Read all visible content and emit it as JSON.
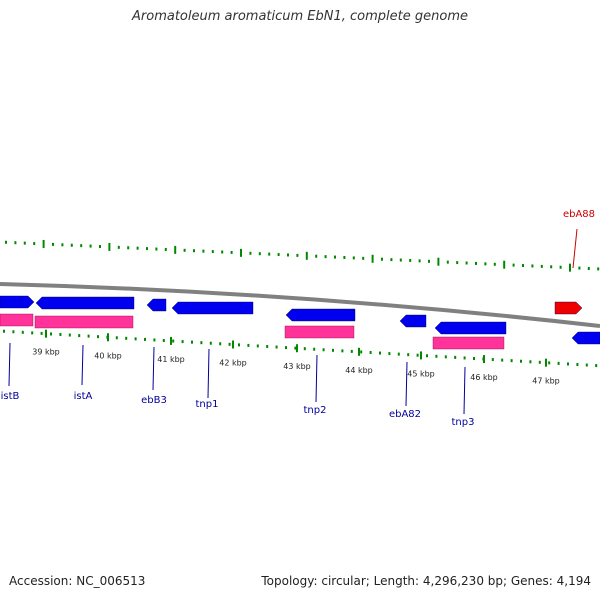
{
  "title": "Aromatoleum aromaticum EbN1, complete genome",
  "footer": {
    "accession": "Accession: NC_006513",
    "summary": "Topology: circular; Length: 4,296,230 bp; Genes: 4,194"
  },
  "colors": {
    "backbone": "#808080",
    "forward_gene": "#0000ee",
    "reverse_gene": "#0000ee",
    "cds": "#ff3399",
    "rna_gene": "#ee0000",
    "tick": "#008800",
    "gene_label": "#000099",
    "rna_label": "#cc0000",
    "scale_label": "#222222"
  },
  "scale": {
    "unit": "kbp",
    "labels": [
      "39 kbp",
      "40 kbp",
      "41 kbp",
      "42 kbp",
      "43 kbp",
      "44 kbp",
      "45 kbp",
      "46 kbp",
      "47 kbp"
    ]
  },
  "genes": [
    {
      "name": "istB",
      "strand": "+",
      "type": "gene"
    },
    {
      "name": "istA",
      "strand": "-",
      "type": "gene"
    },
    {
      "name": "ebB3",
      "strand": "-",
      "type": "gene"
    },
    {
      "name": "tnp1",
      "strand": "-",
      "type": "gene"
    },
    {
      "name": "tnp2",
      "strand": "-",
      "type": "gene"
    },
    {
      "name": "ebA82",
      "strand": "-",
      "type": "gene"
    },
    {
      "name": "tnp3",
      "strand": "-",
      "type": "gene"
    },
    {
      "name": "ebA88",
      "strand": "+",
      "type": "rna"
    }
  ]
}
